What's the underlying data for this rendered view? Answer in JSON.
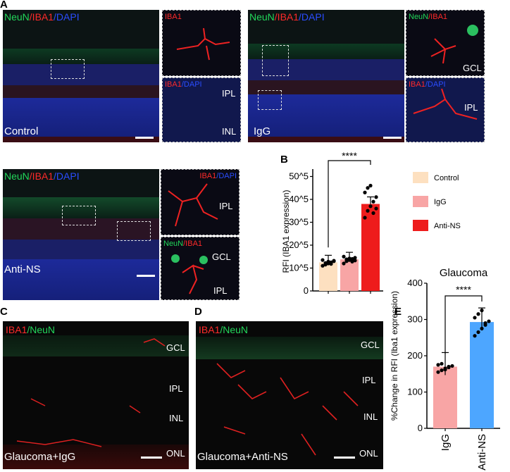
{
  "panels": {
    "A": {
      "letter": "A",
      "control": {
        "stain_neun": "NeuN",
        "stain_iba1": "/IBA1",
        "stain_dapi": "/DAPI",
        "condition": "Control"
      },
      "control_inset_top": {
        "label": "IBA1"
      },
      "control_inset_bottom": {
        "label_iba1": "IBA1",
        "label_dapi": "/DAPI",
        "layer1": "IPL",
        "layer2": "INL"
      },
      "igg": {
        "stain_neun": "NeuN",
        "stain_iba1": "/IBA1",
        "stain_dapi": "/DAPI",
        "condition": "IgG"
      },
      "igg_inset_top": {
        "label_neun": "NeuN",
        "label_iba1": "/IBA1",
        "layer": "GCL"
      },
      "igg_inset_bottom": {
        "label_iba1": "IBA1",
        "label_dapi": "/DAPI",
        "layer": "IPL"
      },
      "antins": {
        "stain_neun": "NeuN",
        "stain_iba1": "/IBA1",
        "stain_dapi": "/DAPI",
        "condition": "Anti-NS"
      },
      "antins_inset_top": {
        "label_iba1": "IBA1",
        "label_dapi": "/DAPI",
        "layer": "IPL"
      },
      "antins_inset_bottom": {
        "label_neun": "NeuN",
        "label_iba1": "/IBA1",
        "layer1": "GCL",
        "layer2": "IPL"
      }
    },
    "B": {
      "letter": "B"
    },
    "C": {
      "letter": "C",
      "stain_iba1": "IBA1",
      "stain_neun": "/NeuN",
      "condition": "Glaucoma+IgG",
      "layers": [
        "GCL",
        "IPL",
        "INL",
        "ONL"
      ]
    },
    "D": {
      "letter": "D",
      "stain_iba1": "IBA1",
      "stain_neun": "/NeuN",
      "condition": "Glaucoma+Anti-NS",
      "layers": [
        "GCL",
        "IPL",
        "INL",
        "ONL"
      ]
    },
    "E": {
      "letter": "E"
    }
  },
  "chart_data": [
    {
      "type": "bar",
      "panel": "B",
      "categories": [
        "Control",
        "IgG",
        "Anti-NS"
      ],
      "values": [
        1.25,
        1.38,
        3.8
      ],
      "ylabel": "RFI (IBA1 expression)",
      "yticks": [
        "10^5",
        "20^5",
        "30^5",
        "40^5",
        "50^5"
      ],
      "ylim": [
        0,
        5.2
      ],
      "significance": "****",
      "legend": [
        {
          "name": "Control",
          "color": "#fde0c0"
        },
        {
          "name": "IgG",
          "color": "#f8a5a5"
        },
        {
          "name": "Anti-NS",
          "color": "#ee1c1c"
        }
      ],
      "colors": [
        "#fde0c0",
        "#f8a5a5",
        "#ee1c1c"
      ],
      "points": [
        [
          1.1,
          1.15,
          1.2,
          1.25,
          1.3,
          1.35,
          1.22,
          1.28,
          1.18,
          1.32
        ],
        [
          1.2,
          1.3,
          1.35,
          1.4,
          1.45,
          1.5,
          1.38,
          1.42,
          1.28,
          1.33
        ],
        [
          3.2,
          3.5,
          3.7,
          3.9,
          4.1,
          4.3,
          4.5,
          4.6,
          3.4,
          3.6
        ]
      ]
    },
    {
      "type": "bar",
      "panel": "E",
      "title": "Glaucoma",
      "categories": [
        "IgG",
        "Anti-NS"
      ],
      "values": [
        170,
        293
      ],
      "ylabel": "%Change in RFI (Iba1 expression)",
      "yticks": [
        "0",
        "100",
        "200",
        "300",
        "400"
      ],
      "ylim": [
        0,
        400
      ],
      "significance": "****",
      "colors": [
        "#f8a5a5",
        "#4da6ff"
      ],
      "points": [
        [
          155,
          160,
          165,
          168,
          172,
          175,
          178,
          162,
          170
        ],
        [
          255,
          265,
          275,
          285,
          295,
          305,
          315,
          325,
          290
        ]
      ]
    }
  ]
}
